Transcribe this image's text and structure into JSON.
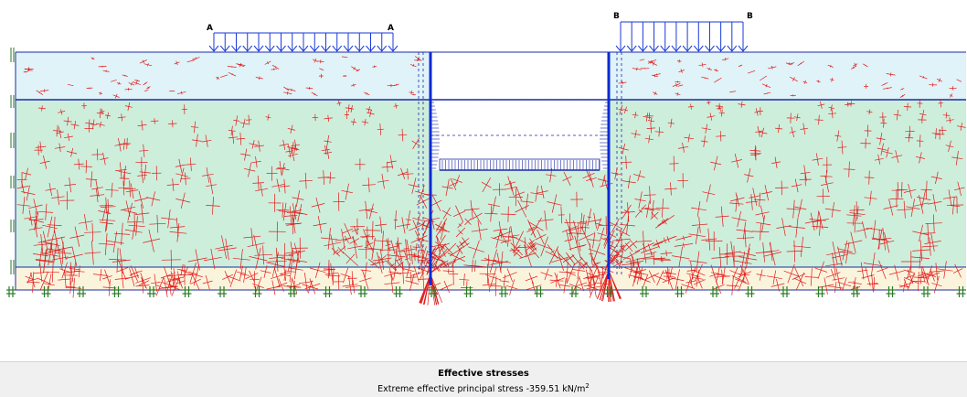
{
  "view": {
    "title": "Effective stresses",
    "extreme_label": "Extreme effective principal stress",
    "extreme_value": "-359.51",
    "unit": "kN/m",
    "unit_exponent": "2"
  },
  "loads": [
    {
      "label_left": "A",
      "label_right": "A"
    },
    {
      "label_left": "B",
      "label_right": "B"
    }
  ],
  "colors": {
    "layer_top": "#dff3f8",
    "layer_middle": "#cdeedb",
    "layer_bottom": "#fbf4dd",
    "boundary_line": "#1c2aa6",
    "wall": "#0b2ad6",
    "stress_cross": "#e21a1a",
    "support": "#2a7a2a",
    "load": "#1a3ad8"
  }
}
